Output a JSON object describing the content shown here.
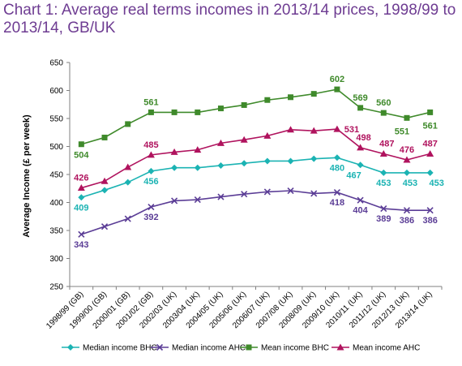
{
  "chart_data": {
    "type": "line",
    "title": "Chart 1: Average real terms incomes in 2013/14 prices, 1998/99 to 2013/14, GB/UK",
    "ylabel": "Average Income (£ per week)",
    "xlabel": "",
    "ylim": [
      250,
      650
    ],
    "yticks": [
      250,
      300,
      350,
      400,
      450,
      500,
      550,
      600,
      650
    ],
    "grid": false,
    "legend_position": "bottom",
    "categories": [
      "1998/99 (GB)",
      "1999/00 (GB)",
      "2000/01 (GB)",
      "2001/02 (GB)",
      "2002/03 (UK)",
      "2003/04 (UK)",
      "2004/05 (UK)",
      "2005/06 (UK)",
      "2006/07 (UK)",
      "2007/08 (UK)",
      "2008/09 (UK)",
      "2009/10 (UK)",
      "2010/11 (UK)",
      "2011/12 (UK)",
      "2012/13 (UK)",
      "2013/14 (UK)"
    ],
    "series": [
      {
        "name": "Median income BHC",
        "color": "#1bb3b3",
        "marker": "diamond",
        "values": [
          409,
          422,
          436,
          456,
          462,
          462,
          466,
          470,
          474,
          474,
          478,
          480,
          467,
          453,
          453,
          453
        ],
        "labels": [
          {
            "index": 0,
            "text": "409"
          },
          {
            "index": 3,
            "text": "456"
          },
          {
            "index": 11,
            "text": "480"
          },
          {
            "index": 12,
            "text": "467"
          },
          {
            "index": 13,
            "text": "453"
          },
          {
            "index": 14,
            "text": "453"
          },
          {
            "index": 15,
            "text": "453"
          }
        ]
      },
      {
        "name": "Median income AHC",
        "color": "#5b3d96",
        "marker": "x",
        "values": [
          343,
          357,
          371,
          392,
          403,
          405,
          410,
          415,
          419,
          421,
          416,
          418,
          404,
          389,
          386,
          386
        ],
        "labels": [
          {
            "index": 0,
            "text": "343"
          },
          {
            "index": 3,
            "text": "392"
          },
          {
            "index": 11,
            "text": "418"
          },
          {
            "index": 12,
            "text": "404"
          },
          {
            "index": 13,
            "text": "389"
          },
          {
            "index": 14,
            "text": "386"
          },
          {
            "index": 15,
            "text": "386"
          }
        ]
      },
      {
        "name": "Mean income BHC",
        "color": "#3f8a2b",
        "marker": "square",
        "values": [
          504,
          516,
          540,
          561,
          561,
          561,
          568,
          574,
          583,
          588,
          594,
          602,
          569,
          560,
          551,
          561
        ],
        "labels": [
          {
            "index": 0,
            "text": "504"
          },
          {
            "index": 3,
            "text": "561"
          },
          {
            "index": 11,
            "text": "602"
          },
          {
            "index": 12,
            "text": "569"
          },
          {
            "index": 13,
            "text": "560"
          },
          {
            "index": 14,
            "text": "551"
          },
          {
            "index": 15,
            "text": "561"
          }
        ]
      },
      {
        "name": "Mean income AHC",
        "color": "#b0135e",
        "marker": "triangle",
        "values": [
          426,
          438,
          463,
          485,
          490,
          494,
          506,
          512,
          519,
          530,
          528,
          531,
          498,
          487,
          476,
          487
        ],
        "labels": [
          {
            "index": 0,
            "text": "426"
          },
          {
            "index": 3,
            "text": "485"
          },
          {
            "index": 11,
            "text": "531"
          },
          {
            "index": 12,
            "text": "498"
          },
          {
            "index": 13,
            "text": "487"
          },
          {
            "index": 14,
            "text": "476"
          },
          {
            "index": 15,
            "text": "487"
          }
        ]
      }
    ]
  }
}
